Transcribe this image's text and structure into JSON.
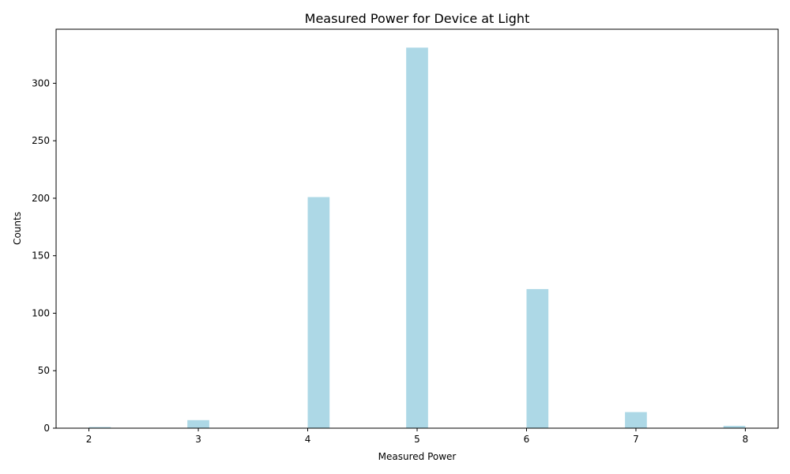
{
  "chart_data": {
    "type": "bar",
    "title": "Measured Power for Device at Light",
    "xlabel": "Measured Power",
    "ylabel": "Counts",
    "xlim": [
      1.7,
      8.3
    ],
    "ylim": [
      0,
      347
    ],
    "xticks": [
      2,
      3,
      4,
      5,
      6,
      7,
      8
    ],
    "yticks": [
      0,
      50,
      100,
      150,
      200,
      250,
      300
    ],
    "bar_color": "#add8e6",
    "bin_width": 0.2,
    "bars": [
      {
        "x": 2.1,
        "value": 1
      },
      {
        "x": 3.0,
        "value": 7
      },
      {
        "x": 4.1,
        "value": 201
      },
      {
        "x": 5.0,
        "value": 331
      },
      {
        "x": 6.1,
        "value": 121
      },
      {
        "x": 7.0,
        "value": 14
      },
      {
        "x": 7.9,
        "value": 2
      }
    ],
    "grid": false,
    "legend": "none"
  }
}
